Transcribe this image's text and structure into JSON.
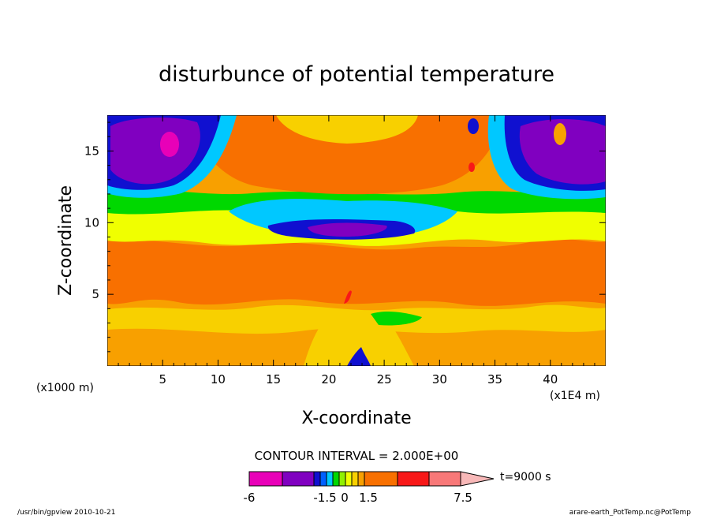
{
  "chart_data": {
    "type": "heatmap",
    "title": "disturbunce of potential temperature",
    "xlabel": "X-coordinate",
    "ylabel": "Z-coordinate",
    "x_unit_left": "(x1000 m)",
    "x_unit_right": "(x1E4 m)",
    "xlim": [
      0,
      45
    ],
    "ylim": [
      0,
      17.5
    ],
    "x_ticks": [
      5,
      10,
      15,
      20,
      25,
      30,
      35,
      40
    ],
    "y_ticks": [
      5,
      10,
      15
    ],
    "x_tick_labels": [
      "5",
      "10",
      "15",
      "20",
      "25",
      "30",
      "35",
      "40"
    ],
    "y_tick_labels": [
      "5",
      "10",
      "15"
    ],
    "contour_interval_text": "CONTOUR INTERVAL = 2.000E+00",
    "time_text": "t=9000 s",
    "colorbar": {
      "colors": [
        "#e800b8",
        "#8000c0",
        "#1010d0",
        "#0060ff",
        "#00c8ff",
        "#00d800",
        "#90f000",
        "#f0ff00",
        "#f8d000",
        "#f8a000",
        "#f87000",
        "#f81818",
        "#f87878",
        "#f8b8b8"
      ],
      "labels": [
        "-6",
        "-1.5",
        "0",
        "1.5",
        "7.5"
      ]
    },
    "footer_left": "/usr/bin/gpview  2010-10-21",
    "footer_right": "arare-earth_PotTemp.nc@PotTemp"
  }
}
